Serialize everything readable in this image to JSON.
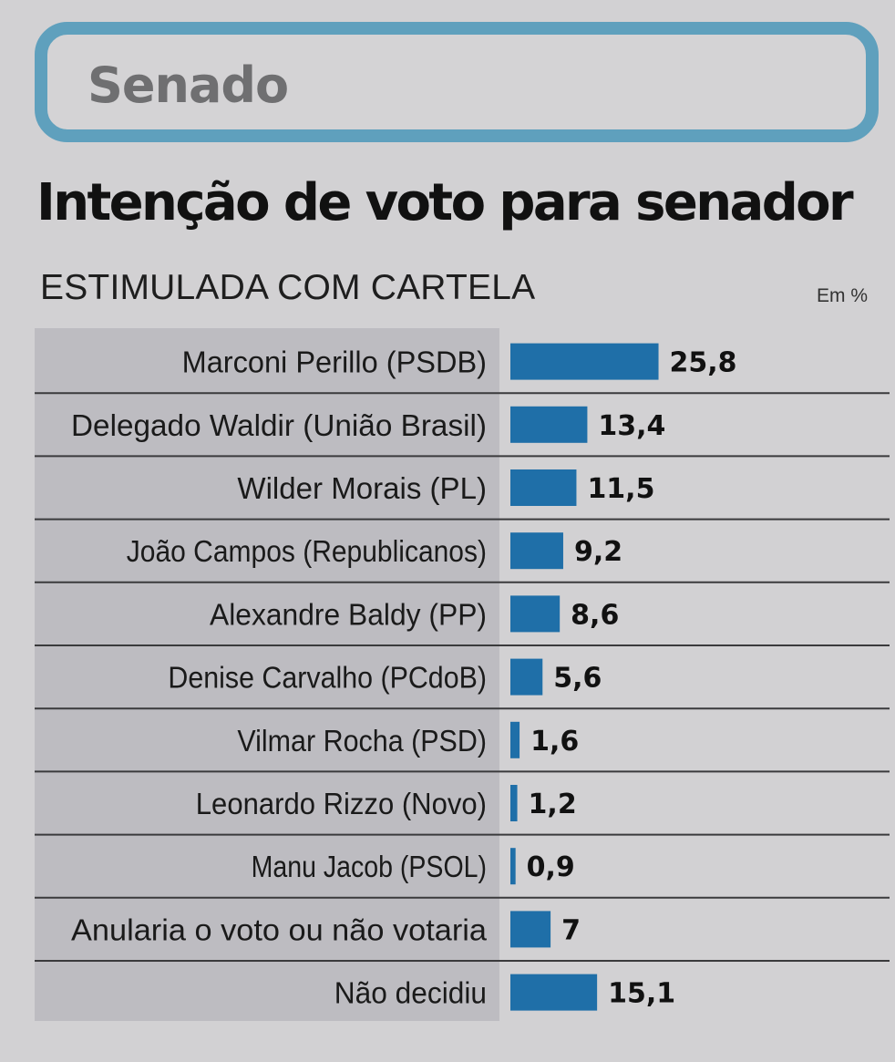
{
  "header": {
    "section": "Senado",
    "title": "Intenção de voto para senador",
    "subtitle": "ESTIMULADA COM CARTELA",
    "unit": "Em %"
  },
  "colors": {
    "bar": "#1f6fa8",
    "frame": "#5fa0bd",
    "label_bg": "#bdbcc1"
  },
  "chart_data": {
    "type": "bar",
    "orientation": "horizontal",
    "title": "Intenção de voto para senador",
    "subtitle": "ESTIMULADA COM CARTELA",
    "unit": "Em %",
    "categories": [
      "Marconi Perillo (PSDB)",
      "Delegado Waldir (União Brasil)",
      "Wilder Morais (PL)",
      "João Campos (Republicanos)",
      "Alexandre Baldy (PP)",
      "Denise Carvalho (PCdoB)",
      "Vilmar Rocha (PSD)",
      "Leonardo Rizzo (Novo)",
      "Manu Jacob (PSOL)",
      "Anularia o voto ou não votaria",
      "Não decidiu"
    ],
    "values": [
      25.8,
      13.4,
      11.5,
      9.2,
      8.6,
      5.6,
      1.6,
      1.2,
      0.9,
      7,
      15.1
    ],
    "value_labels": [
      "25,8",
      "13,4",
      "11,5",
      "9,2",
      "8,6",
      "5,6",
      "1,6",
      "1,2",
      "0,9",
      "7",
      "15,1"
    ]
  }
}
